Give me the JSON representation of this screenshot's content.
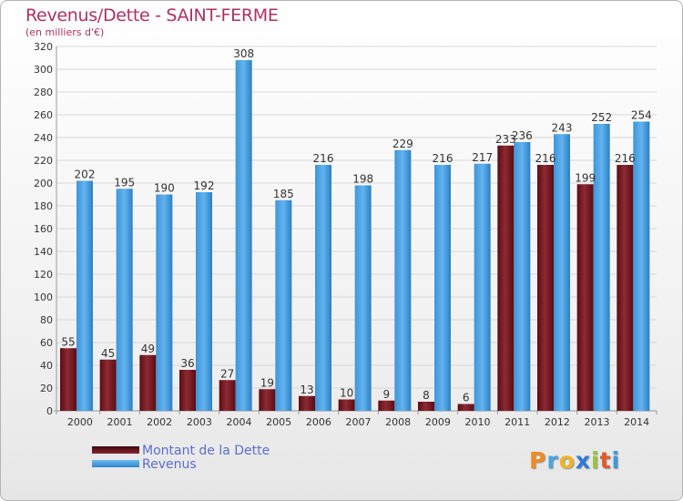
{
  "title": "Revenus/Dette - SAINT-FERME",
  "subtitle": "(en milliers d'€)",
  "legend": {
    "debt_label": "Montant de la Dette",
    "revenue_label": "Revenus"
  },
  "logo": {
    "text": "Proxiti"
  },
  "colors": {
    "debt": "#7b1a22",
    "debt_dark": "#4a0a10",
    "revenue": "#55aaea",
    "revenue_dark": "#2f86cc",
    "title": "#b03064",
    "legend_text": "#5c6ecc"
  },
  "chart_data": {
    "type": "bar",
    "title": "Revenus/Dette - SAINT-FERME",
    "ylabel": "(en milliers d'€)",
    "xlabel": "",
    "categories": [
      "2000",
      "2001",
      "2002",
      "2003",
      "2004",
      "2005",
      "2006",
      "2007",
      "2008",
      "2009",
      "2010",
      "2011",
      "2012",
      "2013",
      "2014"
    ],
    "series": [
      {
        "name": "Montant de la Dette",
        "values": [
          55,
          45,
          49,
          36,
          27,
          19,
          13,
          10,
          9,
          8,
          6,
          233,
          216,
          199,
          216
        ]
      },
      {
        "name": "Revenus",
        "values": [
          202,
          195,
          190,
          192,
          308,
          185,
          216,
          198,
          229,
          216,
          217,
          236,
          243,
          252,
          254
        ]
      }
    ],
    "ylim": [
      0,
      320
    ],
    "yticks": [
      0,
      20,
      40,
      60,
      80,
      100,
      120,
      140,
      160,
      180,
      200,
      220,
      240,
      260,
      280,
      300,
      320
    ],
    "grid": true,
    "legend_position": "bottom-left"
  }
}
